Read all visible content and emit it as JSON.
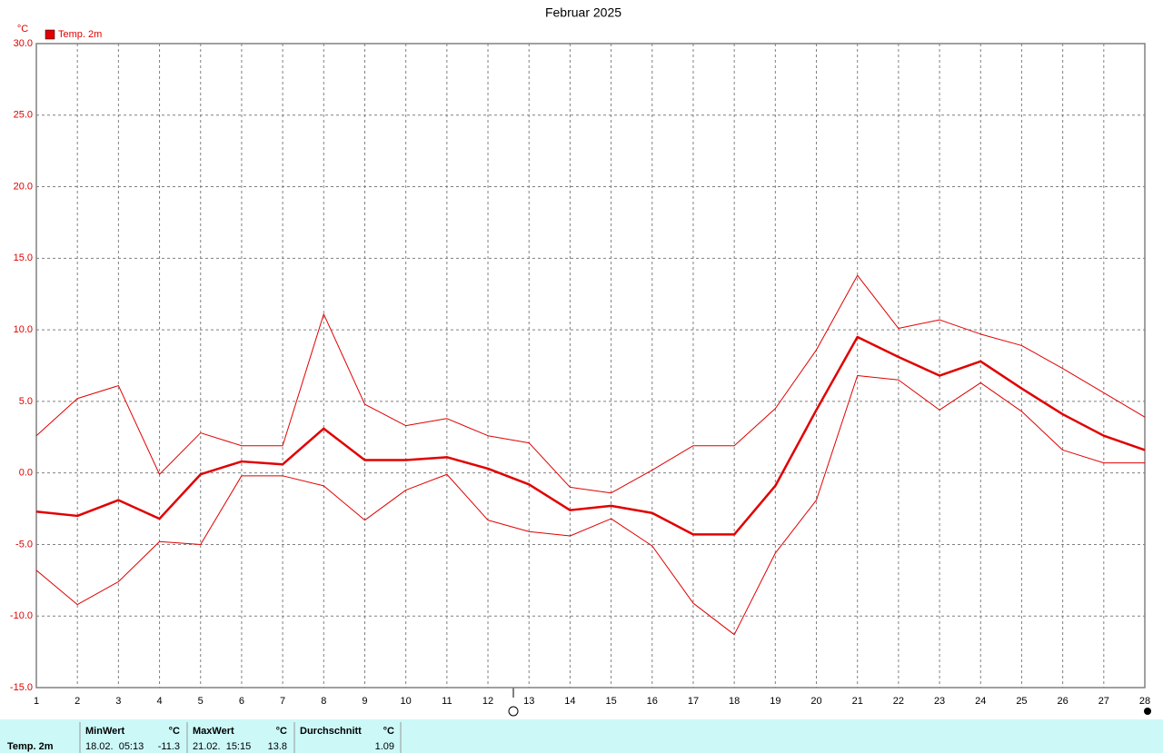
{
  "chart_data": {
    "type": "line",
    "title": "Februar 2025",
    "y_unit": "°C",
    "x": [
      1,
      2,
      3,
      4,
      5,
      6,
      7,
      8,
      9,
      10,
      11,
      12,
      13,
      14,
      15,
      16,
      17,
      18,
      19,
      20,
      21,
      22,
      23,
      24,
      25,
      26,
      27,
      28
    ],
    "xlim": [
      1,
      28
    ],
    "xticks": [
      1,
      2,
      3,
      4,
      5,
      6,
      7,
      8,
      9,
      10,
      11,
      12,
      13,
      14,
      15,
      16,
      17,
      18,
      19,
      20,
      21,
      22,
      23,
      24,
      25,
      26,
      27,
      28
    ],
    "ylim": [
      -15,
      30
    ],
    "yticks": [
      {
        "value": -15,
        "label": "-15.0"
      },
      {
        "value": -10,
        "label": "-10.0"
      },
      {
        "value": -5,
        "label": "-5.0"
      },
      {
        "value": 0,
        "label": "0.0"
      },
      {
        "value": 5,
        "label": "5.0"
      },
      {
        "value": 10,
        "label": "10.0"
      },
      {
        "value": 15,
        "label": "15.0"
      },
      {
        "value": 20,
        "label": "20.0"
      },
      {
        "value": 25,
        "label": "25.0"
      },
      {
        "value": 30,
        "label": "30.0"
      }
    ],
    "grid": true,
    "legend": "top-left",
    "series": [
      {
        "name": "Temp. 2m",
        "color": "#e00000",
        "values": [
          -2.7,
          -3.0,
          -1.9,
          -3.2,
          -0.1,
          0.8,
          0.6,
          3.1,
          0.9,
          0.9,
          1.1,
          0.3,
          -0.8,
          -2.6,
          -2.3,
          -2.8,
          -4.3,
          -4.3,
          -0.9,
          4.4,
          9.5,
          8.1,
          6.8,
          7.8,
          5.9,
          4.1,
          2.6,
          1.6
        ]
      },
      {
        "color": "#e00000",
        "values": [
          2.6,
          5.2,
          6.1,
          -0.1,
          2.8,
          1.9,
          1.9,
          11.1,
          4.8,
          3.3,
          3.8,
          2.6,
          2.1,
          -1.0,
          -1.4,
          0.2,
          1.9,
          1.9,
          4.5,
          8.6,
          13.8,
          10.1,
          10.7,
          9.7,
          8.9,
          7.3,
          5.6,
          3.9
        ]
      },
      {
        "color": "#e00000",
        "values": [
          -6.8,
          -9.2,
          -7.6,
          -4.8,
          -5.0,
          -0.2,
          -0.2,
          -0.9,
          -3.3,
          -1.2,
          -0.1,
          -3.3,
          -4.1,
          -4.4,
          -3.2,
          -5.1,
          -9.1,
          -11.3,
          -5.6,
          -1.9,
          6.8,
          6.5,
          4.4,
          6.3,
          4.3,
          1.6,
          0.7,
          0.7
        ]
      }
    ]
  },
  "stats": {
    "label": "Temp. 2m",
    "min": {
      "title": "MinWert",
      "unit": "°C",
      "time": "18.02.  05:13",
      "value": -11.3
    },
    "max": {
      "title": "MaxWert",
      "unit": "°C",
      "time": "21.02.  15:15",
      "value": 13.8
    },
    "avg": {
      "title": "Durchschnitt",
      "unit": "°C",
      "value": 1.09
    }
  }
}
